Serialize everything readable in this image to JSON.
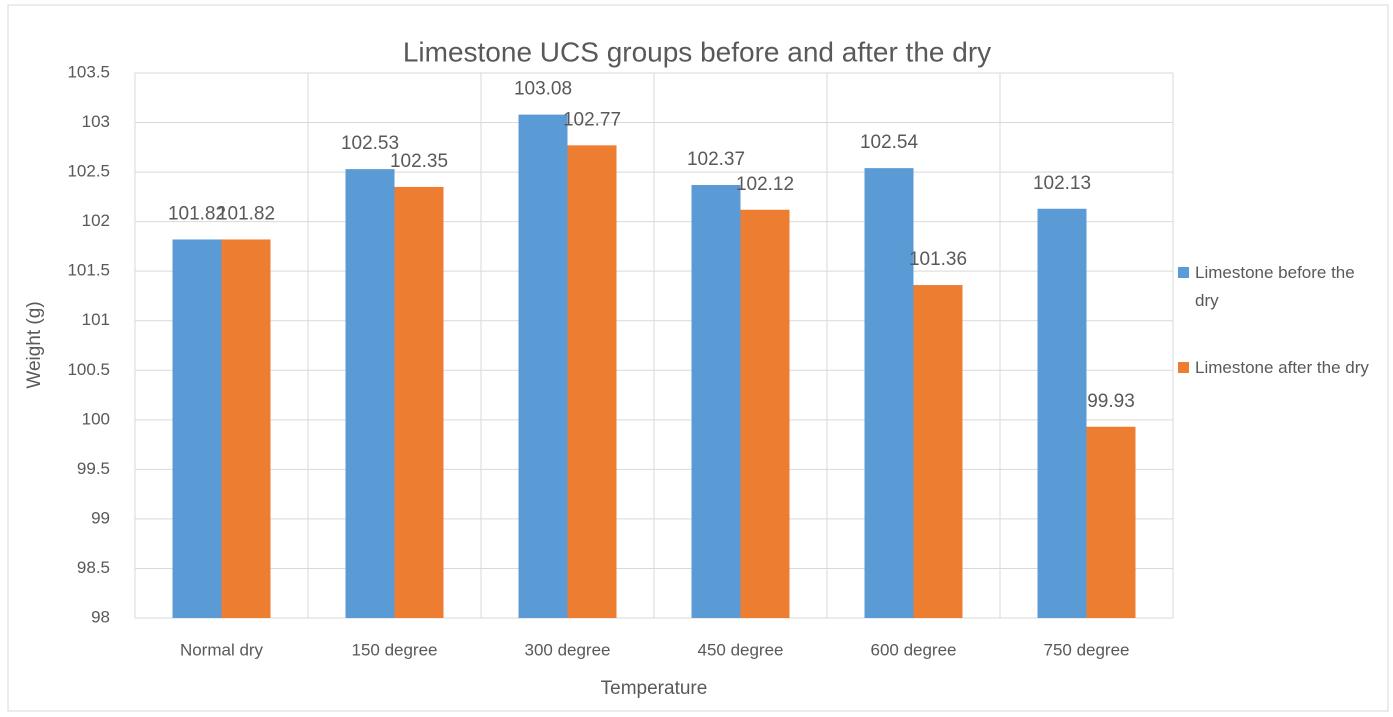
{
  "chart_data": {
    "type": "bar",
    "title": "Limestone UCS groups before and after the dry",
    "x_label": "Temperature",
    "y_label": "Weight (g)",
    "categories": [
      "Normal dry",
      "150 degree",
      "300 degree",
      "450 degree",
      "600 degree",
      "750 degree"
    ],
    "series": [
      {
        "name": "Limestone before the dry",
        "color": "#5b9bd5",
        "values": [
          101.82,
          102.53,
          103.08,
          102.37,
          102.54,
          102.13
        ]
      },
      {
        "name": "Limestone after the dry",
        "color": "#ed7d31",
        "values": [
          101.82,
          102.35,
          102.77,
          102.12,
          101.36,
          99.93
        ]
      }
    ],
    "ylim": [
      98,
      103.5
    ],
    "yticks": [
      98,
      98.5,
      99,
      99.5,
      100,
      100.5,
      101,
      101.5,
      102,
      102.5,
      103,
      103.5
    ],
    "grid": true,
    "legend": "right"
  }
}
